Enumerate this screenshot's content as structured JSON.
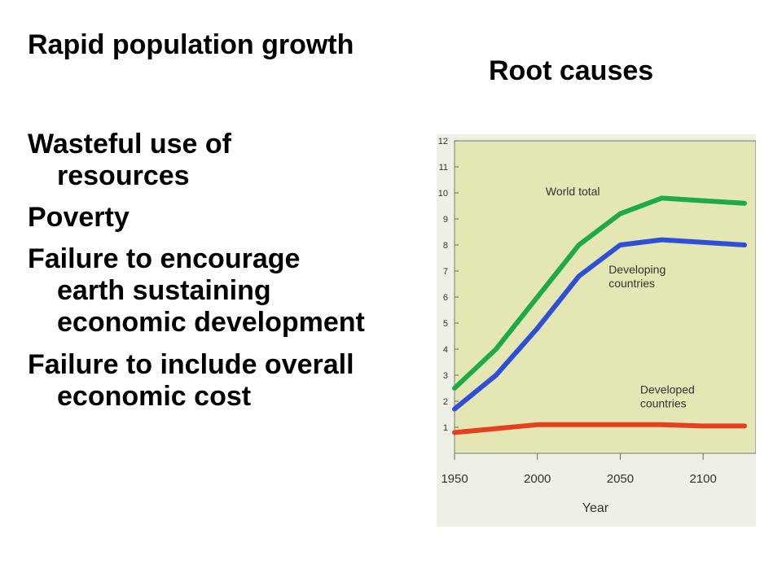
{
  "slide": {
    "title": "Rapid population growth",
    "subtitle": "Root causes",
    "bullets": [
      {
        "lines": [
          "Wasteful use of",
          "resources"
        ]
      },
      {
        "lines": [
          "Poverty"
        ]
      },
      {
        "lines": [
          "Failure to encourage",
          "earth sustaining",
          "economic development"
        ]
      },
      {
        "lines": [
          "Failure to include overall",
          "economic cost"
        ]
      }
    ]
  },
  "chart_data": {
    "type": "line",
    "xlabel": "Year",
    "ylabel": "",
    "x_ticks": [
      "1950",
      "2000",
      "2050",
      "2100"
    ],
    "y_ticks": [
      "12",
      "11",
      "10",
      "9",
      "8",
      "7",
      "6",
      "5",
      "4",
      "3",
      "2",
      "1"
    ],
    "xlim": [
      1950,
      2125
    ],
    "ylim": [
      0,
      12
    ],
    "series": [
      {
        "name": "World total",
        "color": "#1faa4a",
        "x": [
          1950,
          1975,
          2000,
          2025,
          2050,
          2075,
          2100,
          2125
        ],
        "y": [
          2.5,
          4.0,
          6.0,
          8.0,
          9.2,
          9.8,
          9.7,
          9.6
        ]
      },
      {
        "name": "Developing countries",
        "color": "#2f4fd6",
        "x": [
          1950,
          1975,
          2000,
          2025,
          2050,
          2075,
          2100,
          2125
        ],
        "y": [
          1.7,
          3.0,
          4.8,
          6.8,
          8.0,
          8.2,
          8.1,
          8.0
        ]
      },
      {
        "name": "Developed countries",
        "color": "#e8401c",
        "x": [
          1950,
          1975,
          2000,
          2025,
          2050,
          2075,
          2100,
          2125
        ],
        "y": [
          0.8,
          0.95,
          1.1,
          1.1,
          1.1,
          1.1,
          1.05,
          1.05
        ]
      }
    ],
    "background": "#e4e6b4"
  }
}
